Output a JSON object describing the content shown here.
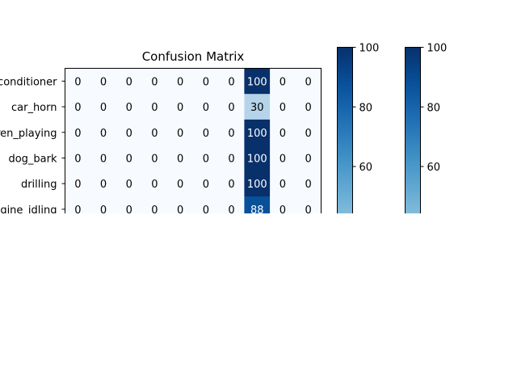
{
  "chart_data": {
    "type": "heatmap",
    "title": "Confusion Matrix",
    "colormap": "Blues",
    "row_labels": [
      "air_conditioner",
      "car_horn",
      "children_playing",
      "dog_bark",
      "drilling",
      "engine_idling"
    ],
    "n_columns": 10,
    "values": [
      [
        0,
        0,
        0,
        0,
        0,
        0,
        0,
        100,
        0,
        0
      ],
      [
        0,
        0,
        0,
        0,
        0,
        0,
        0,
        30,
        0,
        0
      ],
      [
        0,
        0,
        0,
        0,
        0,
        0,
        0,
        100,
        0,
        0
      ],
      [
        0,
        0,
        0,
        0,
        0,
        0,
        0,
        100,
        0,
        0
      ],
      [
        0,
        0,
        0,
        0,
        0,
        0,
        0,
        100,
        0,
        0
      ],
      [
        0,
        0,
        0,
        0,
        0,
        0,
        0,
        88,
        0,
        0
      ]
    ],
    "color_range": [
      0,
      100
    ],
    "colorbars": [
      {
        "ticks": [
          60,
          80,
          100
        ],
        "visible_range": [
          44,
          100
        ]
      },
      {
        "ticks": [
          60,
          80,
          100
        ],
        "visible_range": [
          44,
          100
        ]
      }
    ]
  }
}
